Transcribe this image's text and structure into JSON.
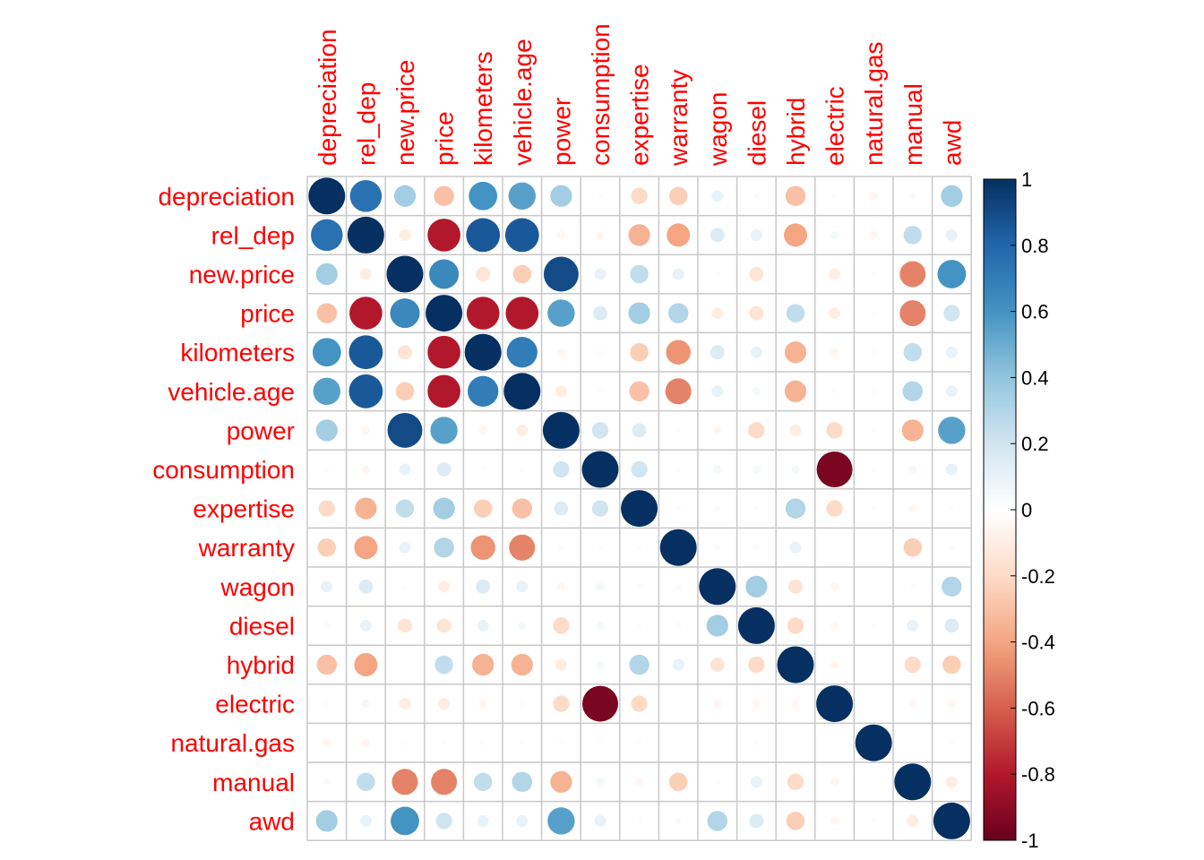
{
  "chart_data": {
    "type": "heatmap",
    "method": "circle",
    "variables": [
      "depreciation",
      "rel_dep",
      "new.price",
      "price",
      "kilometers",
      "vehicle.age",
      "power",
      "consumption",
      "expertise",
      "warranty",
      "wagon",
      "diesel",
      "hybrid",
      "electric",
      "natural.gas",
      "manual",
      "awd"
    ],
    "matrix": [
      [
        1,
        0.75,
        0.35,
        -0.3,
        0.6,
        0.55,
        0.35,
        -0.02,
        -0.2,
        -0.25,
        0.1,
        0.03,
        -0.3,
        0.02,
        -0.05,
        0.03,
        0.35
      ],
      [
        0.75,
        1,
        -0.1,
        -0.8,
        0.85,
        0.85,
        -0.05,
        -0.05,
        -0.35,
        -0.4,
        0.15,
        0.1,
        -0.4,
        0.05,
        -0.05,
        0.25,
        0.1
      ],
      [
        0.35,
        -0.1,
        1,
        0.65,
        -0.15,
        -0.25,
        0.9,
        0.1,
        0.25,
        0.1,
        0.02,
        -0.15,
        0.0,
        -0.1,
        -0.02,
        -0.5,
        0.6
      ],
      [
        -0.3,
        -0.8,
        0.65,
        1,
        -0.8,
        -0.8,
        0.55,
        0.15,
        0.35,
        0.3,
        -0.1,
        -0.15,
        0.25,
        -0.1,
        0.02,
        -0.5,
        0.2
      ],
      [
        0.6,
        0.85,
        -0.15,
        -0.8,
        1,
        0.7,
        -0.05,
        -0.02,
        -0.25,
        -0.45,
        0.15,
        0.1,
        -0.35,
        -0.05,
        -0.02,
        0.25,
        0.1
      ],
      [
        0.55,
        0.85,
        -0.25,
        -0.8,
        0.7,
        1,
        -0.1,
        0.02,
        -0.3,
        -0.5,
        0.1,
        0.05,
        -0.35,
        0.02,
        0.02,
        0.3,
        0.1
      ],
      [
        0.35,
        -0.05,
        0.9,
        0.55,
        -0.05,
        -0.1,
        1,
        0.2,
        0.15,
        -0.02,
        -0.05,
        -0.2,
        -0.1,
        -0.2,
        -0.02,
        -0.35,
        0.55
      ],
      [
        -0.02,
        -0.05,
        0.1,
        0.15,
        -0.02,
        0.02,
        0.2,
        1,
        0.2,
        -0.02,
        0.05,
        0.05,
        0.05,
        -0.95,
        0.02,
        0.05,
        0.1
      ],
      [
        -0.2,
        -0.35,
        0.25,
        0.35,
        -0.25,
        -0.3,
        0.15,
        0.2,
        1,
        0.02,
        -0.03,
        0.02,
        0.3,
        -0.2,
        -0.02,
        -0.05,
        -0.02
      ],
      [
        -0.25,
        -0.4,
        0.1,
        0.3,
        -0.45,
        -0.5,
        -0.02,
        -0.02,
        0.02,
        1,
        -0.03,
        -0.03,
        0.1,
        0.0,
        0.0,
        -0.25,
        -0.03
      ],
      [
        0.1,
        0.15,
        0.02,
        -0.1,
        0.15,
        0.1,
        -0.05,
        0.05,
        -0.03,
        -0.03,
        1,
        0.35,
        -0.15,
        -0.05,
        0.0,
        0.02,
        0.3
      ],
      [
        0.03,
        0.1,
        -0.15,
        -0.15,
        0.1,
        0.05,
        -0.2,
        0.05,
        0.02,
        -0.03,
        0.35,
        1,
        -0.2,
        -0.05,
        0.02,
        0.1,
        0.15
      ],
      [
        -0.3,
        -0.4,
        0.0,
        0.25,
        -0.35,
        -0.35,
        -0.1,
        0.05,
        0.3,
        0.1,
        -0.15,
        -0.2,
        1,
        -0.05,
        0.0,
        -0.2,
        -0.25
      ],
      [
        0.02,
        0.05,
        -0.1,
        -0.1,
        -0.05,
        0.02,
        -0.2,
        -0.95,
        -0.2,
        0.0,
        -0.05,
        -0.05,
        -0.05,
        1,
        0.0,
        -0.05,
        -0.05
      ],
      [
        -0.05,
        -0.05,
        -0.02,
        0.02,
        -0.02,
        0.02,
        -0.02,
        0.02,
        -0.02,
        0.0,
        0.0,
        0.02,
        0.0,
        0.0,
        1,
        0.0,
        0.02
      ],
      [
        0.03,
        0.25,
        -0.5,
        -0.5,
        0.25,
        0.3,
        -0.35,
        0.05,
        -0.05,
        -0.25,
        0.02,
        0.1,
        -0.2,
        -0.05,
        0.0,
        1,
        -0.1
      ],
      [
        0.35,
        0.1,
        0.6,
        0.2,
        0.1,
        0.1,
        0.55,
        0.1,
        -0.02,
        -0.03,
        0.3,
        0.15,
        -0.25,
        -0.05,
        0.02,
        -0.1,
        1
      ]
    ],
    "colorbar": {
      "range": [
        -1,
        1
      ],
      "ticks": [
        "1",
        "0.8",
        "0.6",
        "0.4",
        "0.2",
        "0",
        "-0.2",
        "-0.4",
        "-0.6",
        "-0.8",
        "-1"
      ],
      "tick_values": [
        1,
        0.8,
        0.6,
        0.4,
        0.2,
        0,
        -0.2,
        -0.4,
        -0.6,
        -0.8,
        -1
      ],
      "palette": [
        "#67001F",
        "#B2182B",
        "#D6604D",
        "#F4A582",
        "#FDDBC7",
        "#FFFFFF",
        "#D1E5F0",
        "#92C5DE",
        "#4393C3",
        "#2166AC",
        "#053061"
      ]
    },
    "label_color": "#FF0000",
    "grid_color": "#C8C8C8"
  }
}
